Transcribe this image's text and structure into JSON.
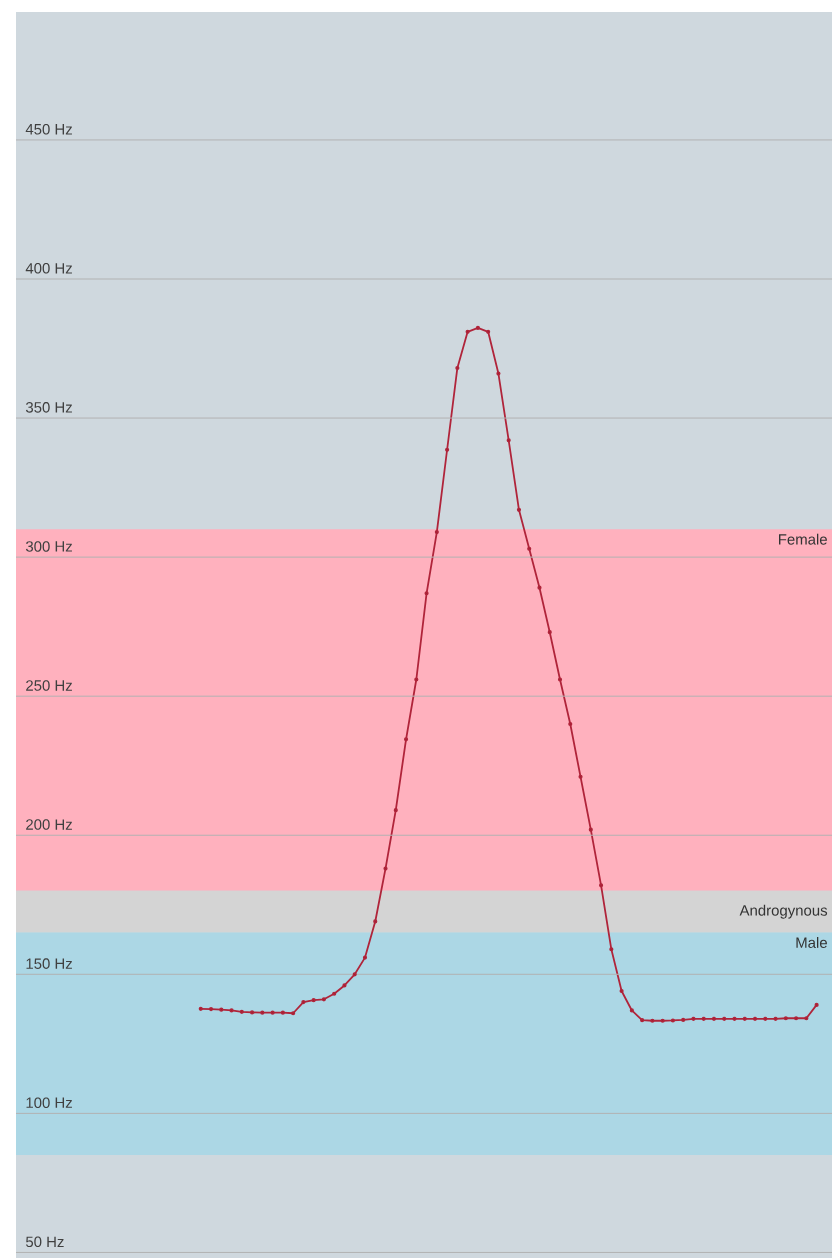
{
  "chart_data": {
    "type": "line",
    "categories": [
      null,
      null,
      null,
      null,
      null,
      null,
      null,
      null,
      null,
      null,
      null,
      null,
      null,
      null,
      null,
      null,
      null,
      null,
      null,
      null,
      null,
      null,
      null,
      null,
      null,
      null,
      null,
      null,
      null,
      null,
      null,
      null,
      null,
      null,
      null,
      null,
      null,
      null,
      null,
      null,
      null,
      null,
      null,
      null,
      null,
      null,
      null,
      null,
      null,
      null,
      null,
      null,
      null,
      null,
      null,
      null,
      null,
      null,
      null,
      null,
      null
    ],
    "series": [
      {
        "color": "#b0243a",
        "values": [
          137.6,
          137.5,
          137.3,
          137,
          136.5,
          136.3,
          136.2,
          136.2,
          136.2,
          136,
          140,
          140.7,
          141,
          143,
          146,
          150,
          156,
          169,
          188,
          209,
          234.5,
          256,
          287,
          309,
          338.6,
          368,
          381,
          382.4,
          381,
          366,
          342,
          317,
          303,
          289,
          273,
          256,
          240,
          221,
          202,
          182,
          159,
          144,
          137,
          133.5,
          133.3,
          133.3,
          133.4,
          133.6,
          134,
          134,
          134,
          134,
          134,
          134,
          134,
          134,
          134,
          134.2,
          134.2,
          134.2,
          139
        ]
      }
    ],
    "ylim": [
      48,
      496
    ],
    "yticks": [
      {
        "value": 50,
        "label": "50 Hz"
      },
      {
        "value": 100,
        "label": "100 Hz"
      },
      {
        "value": 150,
        "label": "150 Hz"
      },
      {
        "value": 200,
        "label": "200 Hz"
      },
      {
        "value": 250,
        "label": "250 Hz"
      },
      {
        "value": 300,
        "label": "300 Hz"
      },
      {
        "value": 350,
        "label": "350 Hz"
      },
      {
        "value": 400,
        "label": "400 Hz"
      },
      {
        "value": 450,
        "label": "450 Hz"
      }
    ],
    "bands": [
      {
        "axis": "y",
        "from": 180,
        "to": 310,
        "label": "Female",
        "color": "#ffb1be"
      },
      {
        "axis": "y",
        "from": 165,
        "to": 180,
        "label": "Androgynous",
        "color": "#d4d4d4"
      },
      {
        "axis": "y",
        "from": 85,
        "to": 165,
        "label": "Male",
        "color": "#acd7e5"
      }
    ],
    "grid": "y",
    "marker": "circle",
    "line_style": "solid"
  }
}
